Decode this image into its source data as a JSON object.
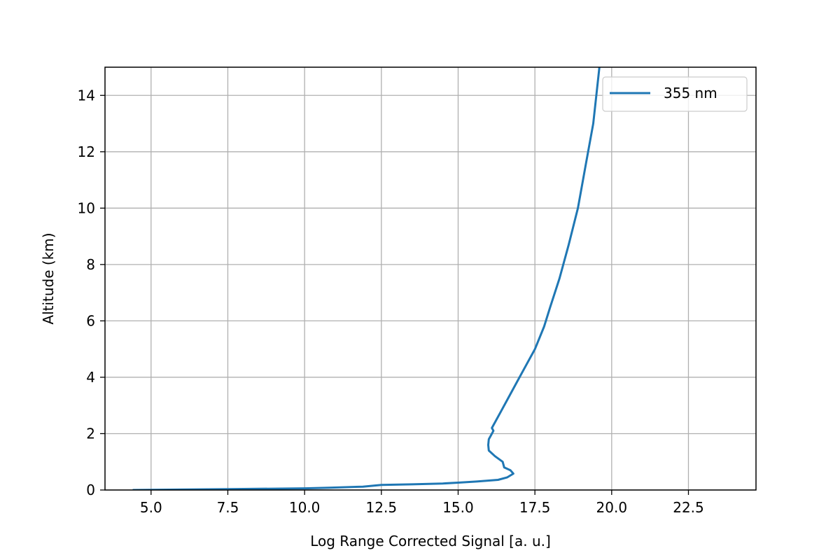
{
  "chart_data": {
    "type": "line",
    "xlabel": "Log Range Corrected Signal [a. u.]",
    "ylabel": "Altitude (km)",
    "xlim": [
      3.5,
      24.7
    ],
    "ylim": [
      0,
      15
    ],
    "x_ticks": [
      "5.0",
      "7.5",
      "10.0",
      "12.5",
      "15.0",
      "17.5",
      "20.0",
      "22.5"
    ],
    "y_ticks": [
      "0",
      "2",
      "4",
      "6",
      "8",
      "10",
      "12",
      "14"
    ],
    "grid": true,
    "legend_position": "top-right",
    "colors": {
      "series": "#1f77b4",
      "grid": "#b0b0b0",
      "axis": "#000000"
    },
    "series": [
      {
        "name": "355 nm",
        "x": [
          4.4,
          7.5,
          10.0,
          10.8,
          11.9,
          12.2,
          12.5,
          13.5,
          14.5,
          15.0,
          15.6,
          16.3,
          16.6,
          16.8,
          16.7,
          16.5,
          16.45,
          16.2,
          16.0,
          15.98,
          16.0,
          16.1,
          16.15,
          16.1,
          16.2,
          16.4,
          16.6,
          16.9,
          17.2,
          17.5,
          17.8,
          18.0,
          18.3,
          18.6,
          18.9,
          19.15,
          19.4,
          19.6
        ],
        "y": [
          0.0,
          0.03,
          0.06,
          0.08,
          0.12,
          0.15,
          0.18,
          0.2,
          0.23,
          0.26,
          0.3,
          0.36,
          0.45,
          0.58,
          0.7,
          0.8,
          1.0,
          1.2,
          1.4,
          1.6,
          1.8,
          2.0,
          2.1,
          2.2,
          2.4,
          2.8,
          3.2,
          3.8,
          4.4,
          5.0,
          5.8,
          6.5,
          7.5,
          8.7,
          10.0,
          11.5,
          13.0,
          15.0
        ]
      }
    ]
  }
}
